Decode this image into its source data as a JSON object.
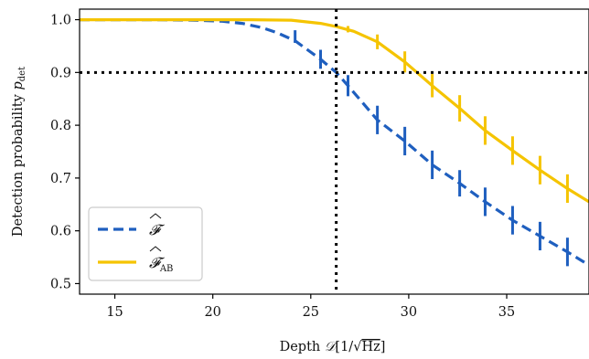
{
  "chart_data": {
    "type": "line",
    "xlabel_prefix": "Depth",
    "xlabel_symbol": "𝒟",
    "xlabel_unit_open": "[1/",
    "xlabel_unit_sqrt": "Hz",
    "xlabel_unit_close": "]",
    "ylabel_prefix": "Detection probability",
    "ylabel_symbol": "p",
    "ylabel_sub": "det",
    "xlim": [
      13.2,
      39.2
    ],
    "ylim": [
      0.48,
      1.02
    ],
    "x_ticks": [
      15,
      20,
      25,
      30,
      35
    ],
    "y_ticks": [
      0.5,
      0.6,
      0.7,
      0.8,
      0.9,
      1.0
    ],
    "y_tick_labels": [
      "0.5",
      "0.6",
      "0.7",
      "0.8",
      "0.9",
      "1.0"
    ],
    "x_tick_labels": [
      "15",
      "20",
      "25",
      "30",
      "35"
    ],
    "hline": 0.9,
    "vline": 26.3,
    "grid": false,
    "legend_position": "lower-left",
    "series": [
      {
        "name": "𝓕̂",
        "name_base": "𝓕",
        "name_sub": "",
        "color": "#1f5fbf",
        "style": "dashed",
        "x": [
          13.2,
          15,
          17,
          19,
          20.5,
          21.5,
          22.5,
          23.3,
          24.2,
          25.5,
          26.3,
          26.9,
          28.4,
          29.8,
          31.2,
          32.6,
          33.9,
          35.3,
          36.7,
          38.1,
          39.2
        ],
        "y": [
          1.0,
          1.0,
          1.0,
          0.999,
          0.997,
          0.993,
          0.985,
          0.975,
          0.96,
          0.925,
          0.9,
          0.875,
          0.81,
          0.77,
          0.725,
          0.69,
          0.655,
          0.62,
          0.59,
          0.56,
          0.535
        ],
        "err_x": [
          24.2,
          25.5,
          26.9,
          28.4,
          29.8,
          31.2,
          32.6,
          33.9,
          35.3,
          36.7,
          38.1
        ],
        "err_y": [
          0.968,
          0.925,
          0.875,
          0.81,
          0.77,
          0.725,
          0.69,
          0.655,
          0.62,
          0.59,
          0.56
        ],
        "err_half": [
          0.012,
          0.018,
          0.02,
          0.027,
          0.027,
          0.027,
          0.025,
          0.027,
          0.027,
          0.027,
          0.027
        ]
      },
      {
        "name": "𝓕̂AB",
        "name_base": "𝓕",
        "name_sub": "AB",
        "color": "#f5c400",
        "style": "solid",
        "x": [
          13.2,
          16,
          19,
          22,
          24,
          25.5,
          26.3,
          27.2,
          28.4,
          29.8,
          31.2,
          32.6,
          33.9,
          35.3,
          36.7,
          38.1,
          39.2
        ],
        "y": [
          1.0,
          1.0,
          1.0,
          1.0,
          0.999,
          0.993,
          0.987,
          0.978,
          0.958,
          0.92,
          0.875,
          0.832,
          0.79,
          0.752,
          0.715,
          0.68,
          0.655
        ],
        "err_x": [
          26.9,
          28.4,
          29.8,
          31.2,
          32.6,
          33.9,
          35.3,
          36.7,
          38.1
        ],
        "err_y": [
          0.982,
          0.958,
          0.92,
          0.875,
          0.832,
          0.79,
          0.752,
          0.715,
          0.68
        ],
        "err_half": [
          0.006,
          0.014,
          0.02,
          0.022,
          0.025,
          0.027,
          0.027,
          0.027,
          0.027
        ]
      }
    ]
  }
}
